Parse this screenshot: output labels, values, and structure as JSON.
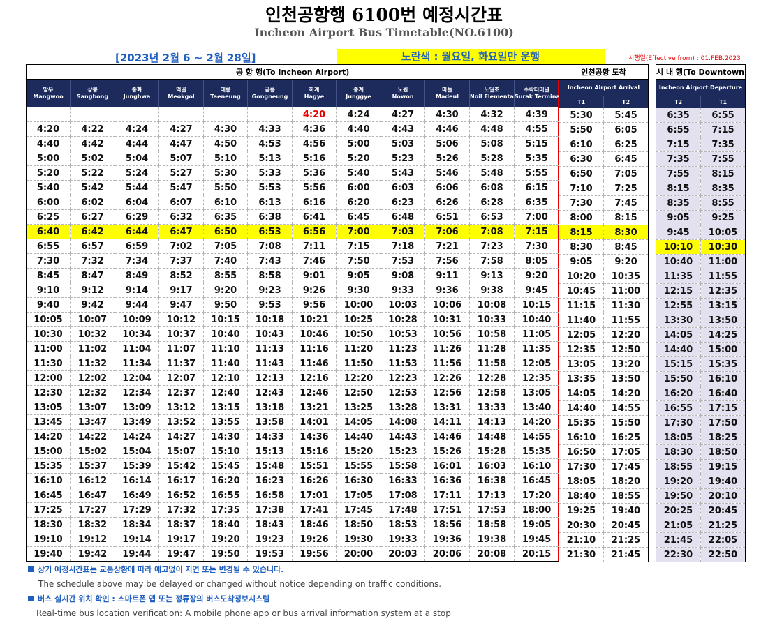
{
  "title": "인천공항행 6100번 예정시간표",
  "subtitle": "Incheon Airport Bus Timetable(NO.6100)",
  "period": "[2023년 2월 6 ~ 2월 28일]",
  "notice": "노란색 : 월요일, 화요일만 운행",
  "effective": "시행일(Effective from) : 01.FEB.2023",
  "colors": {
    "header_bg": "#1c2a5c",
    "highlight": "#ffff00",
    "accent_blue": "#1f5fbf",
    "red": "#e60000",
    "downtown_bg": "#e3e0ef"
  },
  "groups": {
    "to_airport": "공 항 행(To Incheon Airport)",
    "arrival": "인천공항 도착",
    "downtown": "시 내 행(To Downtown)"
  },
  "arrival_header": "Incheon Airport Arrival",
  "departure_header": "Incheon Airport Departure",
  "stops": [
    {
      "ko": "망우",
      "en": "Mangwoo"
    },
    {
      "ko": "상봉",
      "en": "Sangbong"
    },
    {
      "ko": "중화",
      "en": "Junghwa"
    },
    {
      "ko": "먹골",
      "en": "Meokgol"
    },
    {
      "ko": "태릉",
      "en": "Taeneung"
    },
    {
      "ko": "공릉",
      "en": "Gongneung"
    },
    {
      "ko": "하계",
      "en": "Hagye"
    },
    {
      "ko": "중계",
      "en": "Junggye"
    },
    {
      "ko": "노원",
      "en": "Nowon"
    },
    {
      "ko": "마들",
      "en": "Madeul"
    },
    {
      "ko": "노일초",
      "en": "Noil Elementary School"
    },
    {
      "ko": "수락터미널",
      "en": "Surak Terminal"
    }
  ],
  "arrival_terminals": [
    "T1",
    "T2"
  ],
  "departure_terminals": [
    "T2",
    "T1"
  ],
  "highlight_rows_airport": [
    8
  ],
  "highlight_rows_downtown": [
    9
  ],
  "rows": [
    {
      "stops": [
        "",
        "",
        "",
        "",
        "",
        "",
        "4:20",
        "4:24",
        "4:27",
        "4:30",
        "4:32",
        "4:39"
      ],
      "arr": [
        "5:30",
        "5:45"
      ],
      "dep": [
        "6:35",
        "6:55"
      ]
    },
    {
      "stops": [
        "4:20",
        "4:22",
        "4:24",
        "4:27",
        "4:30",
        "4:33",
        "4:36",
        "4:40",
        "4:43",
        "4:46",
        "4:48",
        "4:55"
      ],
      "arr": [
        "5:50",
        "6:05"
      ],
      "dep": [
        "6:55",
        "7:15"
      ]
    },
    {
      "stops": [
        "4:40",
        "4:42",
        "4:44",
        "4:47",
        "4:50",
        "4:53",
        "4:56",
        "5:00",
        "5:03",
        "5:06",
        "5:08",
        "5:15"
      ],
      "arr": [
        "6:10",
        "6:25"
      ],
      "dep": [
        "7:15",
        "7:35"
      ]
    },
    {
      "stops": [
        "5:00",
        "5:02",
        "5:04",
        "5:07",
        "5:10",
        "5:13",
        "5:16",
        "5:20",
        "5:23",
        "5:26",
        "5:28",
        "5:35"
      ],
      "arr": [
        "6:30",
        "6:45"
      ],
      "dep": [
        "7:35",
        "7:55"
      ]
    },
    {
      "stops": [
        "5:20",
        "5:22",
        "5:24",
        "5:27",
        "5:30",
        "5:33",
        "5:36",
        "5:40",
        "5:43",
        "5:46",
        "5:48",
        "5:55"
      ],
      "arr": [
        "6:50",
        "7:05"
      ],
      "dep": [
        "7:55",
        "8:15"
      ]
    },
    {
      "stops": [
        "5:40",
        "5:42",
        "5:44",
        "5:47",
        "5:50",
        "5:53",
        "5:56",
        "6:00",
        "6:03",
        "6:06",
        "6:08",
        "6:15"
      ],
      "arr": [
        "7:10",
        "7:25"
      ],
      "dep": [
        "8:15",
        "8:35"
      ]
    },
    {
      "stops": [
        "6:00",
        "6:02",
        "6:04",
        "6:07",
        "6:10",
        "6:13",
        "6:16",
        "6:20",
        "6:23",
        "6:26",
        "6:28",
        "6:35"
      ],
      "arr": [
        "7:30",
        "7:45"
      ],
      "dep": [
        "8:35",
        "8:55"
      ]
    },
    {
      "stops": [
        "6:25",
        "6:27",
        "6:29",
        "6:32",
        "6:35",
        "6:38",
        "6:41",
        "6:45",
        "6:48",
        "6:51",
        "6:53",
        "7:00"
      ],
      "arr": [
        "8:00",
        "8:15"
      ],
      "dep": [
        "9:05",
        "9:25"
      ]
    },
    {
      "stops": [
        "6:40",
        "6:42",
        "6:44",
        "6:47",
        "6:50",
        "6:53",
        "6:56",
        "7:00",
        "7:03",
        "7:06",
        "7:08",
        "7:15"
      ],
      "arr": [
        "8:15",
        "8:30"
      ],
      "dep": [
        "9:45",
        "10:05"
      ]
    },
    {
      "stops": [
        "6:55",
        "6:57",
        "6:59",
        "7:02",
        "7:05",
        "7:08",
        "7:11",
        "7:15",
        "7:18",
        "7:21",
        "7:23",
        "7:30"
      ],
      "arr": [
        "8:30",
        "8:45"
      ],
      "dep": [
        "10:10",
        "10:30"
      ]
    },
    {
      "stops": [
        "7:30",
        "7:32",
        "7:34",
        "7:37",
        "7:40",
        "7:43",
        "7:46",
        "7:50",
        "7:53",
        "7:56",
        "7:58",
        "8:05"
      ],
      "arr": [
        "9:05",
        "9:20"
      ],
      "dep": [
        "10:40",
        "11:00"
      ]
    },
    {
      "stops": [
        "8:45",
        "8:47",
        "8:49",
        "8:52",
        "8:55",
        "8:58",
        "9:01",
        "9:05",
        "9:08",
        "9:11",
        "9:13",
        "9:20"
      ],
      "arr": [
        "10:20",
        "10:35"
      ],
      "dep": [
        "11:35",
        "11:55"
      ]
    },
    {
      "stops": [
        "9:10",
        "9:12",
        "9:14",
        "9:17",
        "9:20",
        "9:23",
        "9:26",
        "9:30",
        "9:33",
        "9:36",
        "9:38",
        "9:45"
      ],
      "arr": [
        "10:45",
        "11:00"
      ],
      "dep": [
        "12:15",
        "12:35"
      ]
    },
    {
      "stops": [
        "9:40",
        "9:42",
        "9:44",
        "9:47",
        "9:50",
        "9:53",
        "9:56",
        "10:00",
        "10:03",
        "10:06",
        "10:08",
        "10:15"
      ],
      "arr": [
        "11:15",
        "11:30"
      ],
      "dep": [
        "12:55",
        "13:15"
      ]
    },
    {
      "stops": [
        "10:05",
        "10:07",
        "10:09",
        "10:12",
        "10:15",
        "10:18",
        "10:21",
        "10:25",
        "10:28",
        "10:31",
        "10:33",
        "10:40"
      ],
      "arr": [
        "11:40",
        "11:55"
      ],
      "dep": [
        "13:30",
        "13:50"
      ]
    },
    {
      "stops": [
        "10:30",
        "10:32",
        "10:34",
        "10:37",
        "10:40",
        "10:43",
        "10:46",
        "10:50",
        "10:53",
        "10:56",
        "10:58",
        "11:05"
      ],
      "arr": [
        "12:05",
        "12:20"
      ],
      "dep": [
        "14:05",
        "14:25"
      ]
    },
    {
      "stops": [
        "11:00",
        "11:02",
        "11:04",
        "11:07",
        "11:10",
        "11:13",
        "11:16",
        "11:20",
        "11:23",
        "11:26",
        "11:28",
        "11:35"
      ],
      "arr": [
        "12:35",
        "12:50"
      ],
      "dep": [
        "14:40",
        "15:00"
      ]
    },
    {
      "stops": [
        "11:30",
        "11:32",
        "11:34",
        "11:37",
        "11:40",
        "11:43",
        "11:46",
        "11:50",
        "11:53",
        "11:56",
        "11:58",
        "12:05"
      ],
      "arr": [
        "13:05",
        "13:20"
      ],
      "dep": [
        "15:15",
        "15:35"
      ]
    },
    {
      "stops": [
        "12:00",
        "12:02",
        "12:04",
        "12:07",
        "12:10",
        "12:13",
        "12:16",
        "12:20",
        "12:23",
        "12:26",
        "12:28",
        "12:35"
      ],
      "arr": [
        "13:35",
        "13:50"
      ],
      "dep": [
        "15:50",
        "16:10"
      ]
    },
    {
      "stops": [
        "12:30",
        "12:32",
        "12:34",
        "12:37",
        "12:40",
        "12:43",
        "12:46",
        "12:50",
        "12:53",
        "12:56",
        "12:58",
        "13:05"
      ],
      "arr": [
        "14:05",
        "14:20"
      ],
      "dep": [
        "16:20",
        "16:40"
      ]
    },
    {
      "stops": [
        "13:05",
        "13:07",
        "13:09",
        "13:12",
        "13:15",
        "13:18",
        "13:21",
        "13:25",
        "13:28",
        "13:31",
        "13:33",
        "13:40"
      ],
      "arr": [
        "14:40",
        "14:55"
      ],
      "dep": [
        "16:55",
        "17:15"
      ]
    },
    {
      "stops": [
        "13:45",
        "13:47",
        "13:49",
        "13:52",
        "13:55",
        "13:58",
        "14:01",
        "14:05",
        "14:08",
        "14:11",
        "14:13",
        "14:20"
      ],
      "arr": [
        "15:35",
        "15:50"
      ],
      "dep": [
        "17:30",
        "17:50"
      ]
    },
    {
      "stops": [
        "14:20",
        "14:22",
        "14:24",
        "14:27",
        "14:30",
        "14:33",
        "14:36",
        "14:40",
        "14:43",
        "14:46",
        "14:48",
        "14:55"
      ],
      "arr": [
        "16:10",
        "16:25"
      ],
      "dep": [
        "18:05",
        "18:25"
      ]
    },
    {
      "stops": [
        "15:00",
        "15:02",
        "15:04",
        "15:07",
        "15:10",
        "15:13",
        "15:16",
        "15:20",
        "15:23",
        "15:26",
        "15:28",
        "15:35"
      ],
      "arr": [
        "16:50",
        "17:05"
      ],
      "dep": [
        "18:30",
        "18:50"
      ]
    },
    {
      "stops": [
        "15:35",
        "15:37",
        "15:39",
        "15:42",
        "15:45",
        "15:48",
        "15:51",
        "15:55",
        "15:58",
        "16:01",
        "16:03",
        "16:10"
      ],
      "arr": [
        "17:30",
        "17:45"
      ],
      "dep": [
        "18:55",
        "19:15"
      ]
    },
    {
      "stops": [
        "16:10",
        "16:12",
        "16:14",
        "16:17",
        "16:20",
        "16:23",
        "16:26",
        "16:30",
        "16:33",
        "16:36",
        "16:38",
        "16:45"
      ],
      "arr": [
        "18:05",
        "18:20"
      ],
      "dep": [
        "19:20",
        "19:40"
      ]
    },
    {
      "stops": [
        "16:45",
        "16:47",
        "16:49",
        "16:52",
        "16:55",
        "16:58",
        "17:01",
        "17:05",
        "17:08",
        "17:11",
        "17:13",
        "17:20"
      ],
      "arr": [
        "18:40",
        "18:55"
      ],
      "dep": [
        "19:50",
        "20:10"
      ]
    },
    {
      "stops": [
        "17:25",
        "17:27",
        "17:29",
        "17:32",
        "17:35",
        "17:38",
        "17:41",
        "17:45",
        "17:48",
        "17:51",
        "17:53",
        "18:00"
      ],
      "arr": [
        "19:25",
        "19:40"
      ],
      "dep": [
        "20:25",
        "20:45"
      ]
    },
    {
      "stops": [
        "18:30",
        "18:32",
        "18:34",
        "18:37",
        "18:40",
        "18:43",
        "18:46",
        "18:50",
        "18:53",
        "18:56",
        "18:58",
        "19:05"
      ],
      "arr": [
        "20:30",
        "20:45"
      ],
      "dep": [
        "21:05",
        "21:25"
      ]
    },
    {
      "stops": [
        "19:10",
        "19:12",
        "19:14",
        "19:17",
        "19:20",
        "19:23",
        "19:26",
        "19:30",
        "19:33",
        "19:36",
        "19:38",
        "19:45"
      ],
      "arr": [
        "21:10",
        "21:25"
      ],
      "dep": [
        "21:45",
        "22:05"
      ]
    },
    {
      "stops": [
        "19:40",
        "19:42",
        "19:44",
        "19:47",
        "19:50",
        "19:53",
        "19:56",
        "20:00",
        "20:03",
        "20:06",
        "20:08",
        "20:15"
      ],
      "arr": [
        "21:30",
        "21:45"
      ],
      "dep": [
        "22:30",
        "22:50"
      ]
    }
  ],
  "red_cells": [
    {
      "row": 0,
      "col": 6
    }
  ],
  "footnotes": {
    "ko1": "상기 예정시간표는 교통상황에 따라 예고없이 지연 또는 변경될 수 있습니다.",
    "en1": "The schedule above may be delayed or changed without notice depending on traffic conditions.",
    "ko2": "버스 실시간 위치 확인 : 스마트폰 앱 또는 정류장의 버스도착정보시스템",
    "en2": "Real-time bus location verification: A mobile phone app or bus arrival information system at a stop"
  }
}
